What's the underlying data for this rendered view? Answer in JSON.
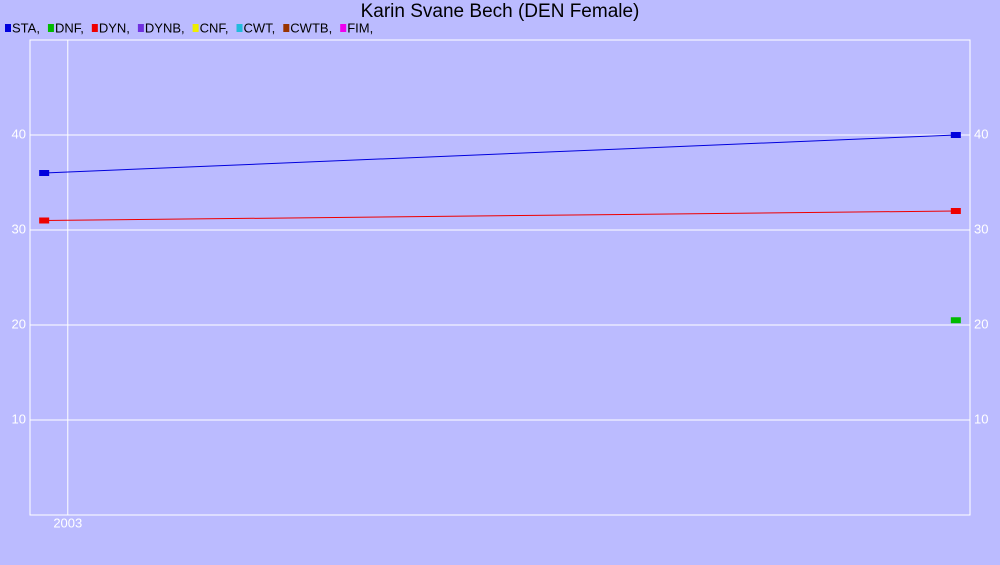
{
  "chart_data": {
    "type": "line",
    "title": "Karin Svane Bech (DEN Female)",
    "x": [
      2002.95,
      2004.88
    ],
    "xlim": [
      2002.92,
      2004.91
    ],
    "xticks": [
      2003
    ],
    "ylim": [
      0,
      50
    ],
    "yticks": [
      10,
      20,
      30,
      40
    ],
    "grid": true,
    "series": [
      {
        "name": "STA,",
        "color": "#0000dd",
        "values": [
          36,
          40
        ]
      },
      {
        "name": "DNF,",
        "color": "#00bb00",
        "values": [
          null,
          20.5
        ]
      },
      {
        "name": "DYN,",
        "color": "#ee0000",
        "values": [
          31,
          32
        ]
      },
      {
        "name": "DYNB,",
        "color": "#7030e0",
        "values": [
          null,
          null
        ]
      },
      {
        "name": "CNF,",
        "color": "#eeee00",
        "values": [
          null,
          null
        ]
      },
      {
        "name": "CWT,",
        "color": "#22bbdd",
        "values": [
          null,
          null
        ]
      },
      {
        "name": "CWTB,",
        "color": "#993300",
        "values": [
          null,
          null
        ]
      },
      {
        "name": "FIM,",
        "color": "#ee00ee",
        "values": [
          null,
          null
        ]
      }
    ]
  }
}
